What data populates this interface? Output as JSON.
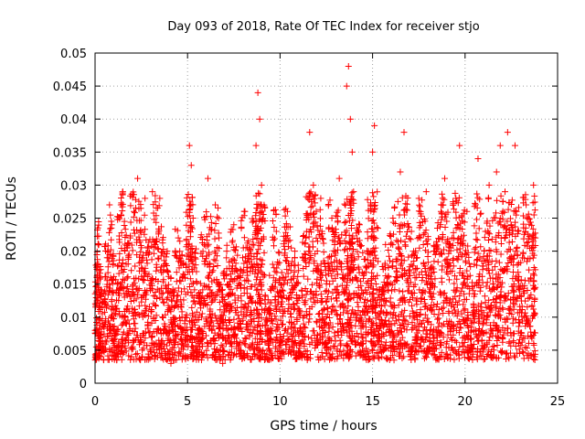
{
  "chart_data": {
    "type": "scatter",
    "title": "Day 093 of 2018, Rate Of TEC Index for receiver stjo",
    "xlabel": "GPS time / hours",
    "ylabel": "ROTI / TECUs",
    "xlim": [
      0,
      25
    ],
    "ylim": [
      0,
      0.05
    ],
    "xticks": [
      0,
      5,
      10,
      15,
      20,
      25
    ],
    "yticks": [
      0,
      0.005,
      0.01,
      0.015,
      0.02,
      0.025,
      0.03,
      0.035,
      0.04,
      0.045,
      0.05
    ],
    "xtick_labels": [
      "0",
      "5",
      "10",
      "15",
      "20",
      "25"
    ],
    "ytick_labels": [
      "0",
      "0.005",
      "0.01",
      "0.015",
      "0.02",
      "0.025",
      "0.03",
      "0.035",
      "0.04",
      "0.045",
      "0.05"
    ],
    "grid": true,
    "marker": "+",
    "marker_color": "#ff0000",
    "series": [
      {
        "name": "ROTI",
        "points": [
          [
            0.0,
            0.008
          ],
          [
            0.1,
            0.016
          ],
          [
            0.2,
            0.021
          ],
          [
            0.3,
            0.005
          ],
          [
            0.5,
            0.012
          ],
          [
            0.7,
            0.019
          ],
          [
            0.9,
            0.024
          ],
          [
            1.0,
            0.006
          ],
          [
            1.2,
            0.015
          ],
          [
            1.4,
            0.027
          ],
          [
            1.5,
            0.029
          ],
          [
            1.7,
            0.009
          ],
          [
            1.9,
            0.022
          ],
          [
            2.1,
            0.026
          ],
          [
            2.3,
            0.031
          ],
          [
            2.5,
            0.013
          ],
          [
            2.7,
            0.028
          ],
          [
            2.9,
            0.004
          ],
          [
            3.1,
            0.029
          ],
          [
            3.3,
            0.017
          ],
          [
            3.5,
            0.028
          ],
          [
            3.7,
            0.008
          ],
          [
            3.9,
            0.02
          ],
          [
            4.1,
            0.003
          ],
          [
            4.3,
            0.014
          ],
          [
            4.5,
            0.022
          ],
          [
            4.7,
            0.01
          ],
          [
            4.9,
            0.018
          ],
          [
            5.1,
            0.036
          ],
          [
            5.2,
            0.033
          ],
          [
            5.3,
            0.025
          ],
          [
            5.5,
            0.004
          ],
          [
            5.7,
            0.012
          ],
          [
            5.9,
            0.021
          ],
          [
            6.1,
            0.031
          ],
          [
            6.3,
            0.008
          ],
          [
            6.5,
            0.027
          ],
          [
            6.7,
            0.015
          ],
          [
            6.9,
            0.003
          ],
          [
            7.1,
            0.019
          ],
          [
            7.3,
            0.011
          ],
          [
            7.5,
            0.024
          ],
          [
            7.7,
            0.006
          ],
          [
            7.9,
            0.017
          ],
          [
            8.1,
            0.026
          ],
          [
            8.3,
            0.009
          ],
          [
            8.5,
            0.021
          ],
          [
            8.7,
            0.036
          ],
          [
            8.8,
            0.044
          ],
          [
            8.9,
            0.04
          ],
          [
            9.0,
            0.03
          ],
          [
            9.2,
            0.012
          ],
          [
            9.4,
            0.005
          ],
          [
            9.6,
            0.018
          ],
          [
            9.8,
            0.023
          ],
          [
            10.0,
            0.007
          ],
          [
            10.2,
            0.015
          ],
          [
            10.4,
            0.026
          ],
          [
            10.6,
            0.01
          ],
          [
            10.8,
            0.02
          ],
          [
            11.0,
            0.004
          ],
          [
            11.2,
            0.013
          ],
          [
            11.4,
            0.022
          ],
          [
            11.6,
            0.038
          ],
          [
            11.8,
            0.03
          ],
          [
            12.0,
            0.017
          ],
          [
            12.2,
            0.028
          ],
          [
            12.4,
            0.006
          ],
          [
            12.6,
            0.019
          ],
          [
            12.8,
            0.025
          ],
          [
            13.0,
            0.011
          ],
          [
            13.2,
            0.031
          ],
          [
            13.4,
            0.008
          ],
          [
            13.6,
            0.045
          ],
          [
            13.7,
            0.048
          ],
          [
            13.8,
            0.04
          ],
          [
            13.9,
            0.035
          ],
          [
            14.1,
            0.016
          ],
          [
            14.3,
            0.024
          ],
          [
            14.5,
            0.006
          ],
          [
            14.7,
            0.02
          ],
          [
            14.9,
            0.027
          ],
          [
            15.0,
            0.035
          ],
          [
            15.1,
            0.039
          ],
          [
            15.3,
            0.013
          ],
          [
            15.5,
            0.004
          ],
          [
            15.7,
            0.021
          ],
          [
            15.9,
            0.009
          ],
          [
            16.1,
            0.025
          ],
          [
            16.3,
            0.017
          ],
          [
            16.5,
            0.032
          ],
          [
            16.7,
            0.038
          ],
          [
            16.9,
            0.014
          ],
          [
            17.1,
            0.023
          ],
          [
            17.3,
            0.007
          ],
          [
            17.5,
            0.028
          ],
          [
            17.7,
            0.016
          ],
          [
            17.9,
            0.029
          ],
          [
            18.1,
            0.005
          ],
          [
            18.3,
            0.02
          ],
          [
            18.5,
            0.012
          ],
          [
            18.7,
            0.026
          ],
          [
            18.9,
            0.031
          ],
          [
            19.1,
            0.009
          ],
          [
            19.3,
            0.022
          ],
          [
            19.5,
            0.028
          ],
          [
            19.7,
            0.036
          ],
          [
            19.9,
            0.015
          ],
          [
            20.1,
            0.026
          ],
          [
            20.3,
            0.004
          ],
          [
            20.5,
            0.018
          ],
          [
            20.7,
            0.034
          ],
          [
            20.9,
            0.011
          ],
          [
            21.1,
            0.023
          ],
          [
            21.3,
            0.03
          ],
          [
            21.5,
            0.008
          ],
          [
            21.7,
            0.032
          ],
          [
            21.9,
            0.036
          ],
          [
            22.1,
            0.017
          ],
          [
            22.3,
            0.038
          ],
          [
            22.5,
            0.024
          ],
          [
            22.7,
            0.036
          ],
          [
            22.9,
            0.006
          ],
          [
            23.1,
            0.019
          ],
          [
            23.3,
            0.027
          ],
          [
            23.5,
            0.013
          ],
          [
            23.7,
            0.03
          ],
          [
            23.8,
            0.022
          ]
        ]
      }
    ]
  }
}
